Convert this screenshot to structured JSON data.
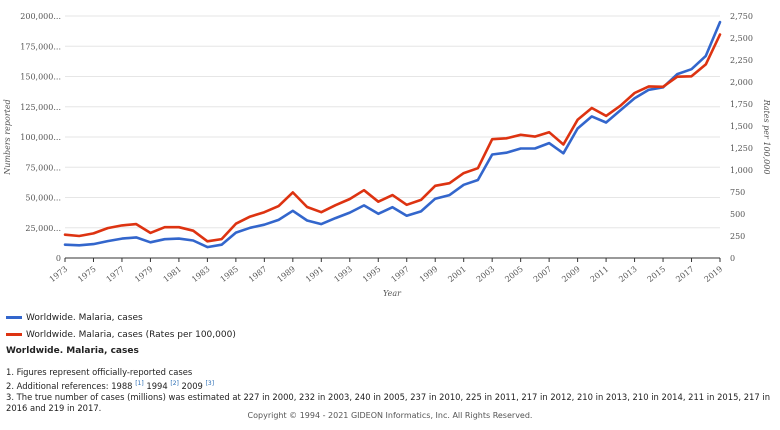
{
  "chart_data": {
    "type": "line",
    "xlabel": "Year",
    "ylabel_left": "Numbers reported",
    "ylabel_right": "Rates per 100,000",
    "x_ticks": [
      "1973",
      "1975",
      "1977",
      "1979",
      "1981",
      "1983",
      "1985",
      "1987",
      "1989",
      "1991",
      "1993",
      "1995",
      "1997",
      "1999",
      "2001",
      "2003",
      "2005",
      "2007",
      "2009",
      "2011",
      "2013",
      "2015",
      "2017",
      "2019"
    ],
    "y_left_ticks": [
      "0",
      "25,000...",
      "50,000...",
      "75,000...",
      "100,000...",
      "125,000...",
      "150,000...",
      "175,000...",
      "200,000..."
    ],
    "y_right_ticks": [
      "0",
      "250",
      "500",
      "750",
      "1,000",
      "1,250",
      "1,500",
      "1,750",
      "2,000",
      "2,250",
      "2,500",
      "2,750"
    ],
    "ylim_left": [
      0,
      200000
    ],
    "ylim_right": [
      0,
      2750
    ],
    "x": [
      1973,
      1974,
      1975,
      1976,
      1977,
      1978,
      1979,
      1980,
      1981,
      1982,
      1983,
      1984,
      1985,
      1986,
      1987,
      1988,
      1989,
      1990,
      1991,
      1992,
      1993,
      1994,
      1995,
      1996,
      1997,
      1998,
      1999,
      2000,
      2001,
      2002,
      2003,
      2004,
      2005,
      2006,
      2007,
      2008,
      2009,
      2010,
      2011,
      2012,
      2013,
      2014,
      2015,
      2016,
      2017,
      2018,
      2019
    ],
    "series": [
      {
        "name": "Worldwide. Malaria, cases",
        "color": "#3366cc",
        "axis": "left",
        "values": [
          11000,
          10500,
          11500,
          14000,
          16000,
          17000,
          13000,
          15500,
          16000,
          14500,
          9000,
          11000,
          21000,
          25000,
          27500,
          31500,
          39000,
          31000,
          28000,
          33000,
          37500,
          43500,
          36500,
          42000,
          35000,
          38500,
          49000,
          52000,
          60500,
          64500,
          85500,
          87000,
          90500,
          90500,
          95000,
          86500,
          107000,
          117000,
          112000,
          122000,
          132000,
          139000,
          141000,
          152000,
          156000,
          167000,
          195000
        ]
      },
      {
        "name": "Worldwide. Malaria, cases (Rates per 100,000)",
        "color": "#dd3311",
        "axis": "right",
        "values": [
          265,
          250,
          280,
          340,
          370,
          385,
          285,
          350,
          350,
          310,
          190,
          215,
          390,
          470,
          520,
          590,
          745,
          580,
          520,
          600,
          670,
          770,
          640,
          715,
          605,
          660,
          820,
          850,
          965,
          1020,
          1350,
          1360,
          1400,
          1380,
          1430,
          1290,
          1570,
          1705,
          1615,
          1730,
          1875,
          1950,
          1945,
          2060,
          2065,
          2200,
          2540
        ]
      }
    ]
  },
  "legend": {
    "items": [
      {
        "label": "Worldwide. Malaria, cases",
        "color": "#3366cc"
      },
      {
        "label": "Worldwide. Malaria, cases (Rates per 100,000)",
        "color": "#dd3311"
      }
    ]
  },
  "section_title": "Worldwide. Malaria, cases",
  "notes": {
    "n1": "1. Figures represent officially-reported cases",
    "n2_prefix": "2. Additional references: 1988",
    "n2_ref1": "[1]",
    "n2_year2": "1994",
    "n2_ref2": "[2]",
    "n2_year3": "2009",
    "n2_ref3": "[3]",
    "n3": "3. The true number of cases (millions) was estimated at 227 in 2000, 232 in 2003, 240 in 2005, 237 in 2010, 225 in 2011, 217 in 2012, 210 in 2013, 210 in 2014, 211 in 2015, 217 in 2016 and 219 in 2017."
  },
  "copyright": "Copyright © 1994 - 2021 GIDEON Informatics, Inc. All Rights Reserved."
}
